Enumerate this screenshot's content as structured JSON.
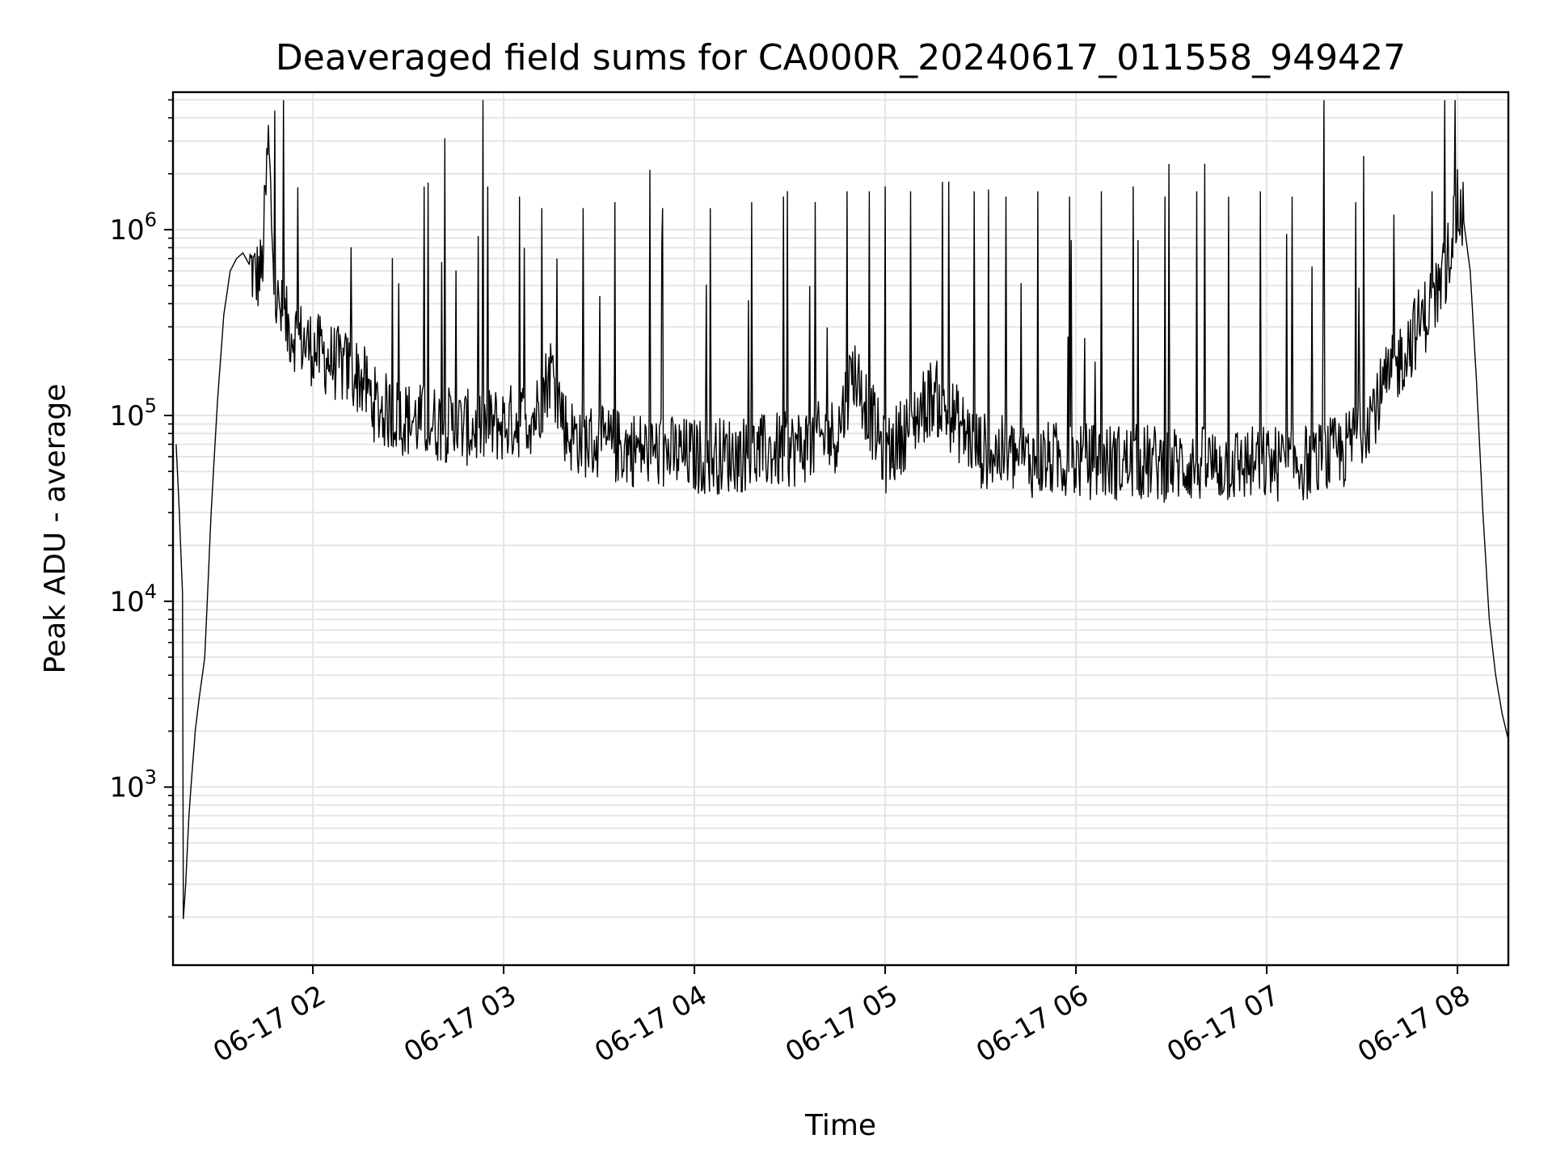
{
  "chart_data": {
    "type": "line",
    "title": "Deaveraged field sums for CA000R_20240617_011558_949427",
    "xlabel": "Time",
    "ylabel": "Peak ADU - average",
    "yscale": "log",
    "ylim": [
      110,
      5500000
    ],
    "xlim": [
      "2024-06-17 01:16",
      "2024-06-17 08:16"
    ],
    "x_ticks": [
      "06-17 02",
      "06-17 03",
      "06-17 04",
      "06-17 05",
      "06-17 06",
      "06-17 07",
      "06-17 08"
    ],
    "x_tick_values": [
      "2024-06-17 02:00",
      "2024-06-17 03:00",
      "2024-06-17 04:00",
      "2024-06-17 05:00",
      "2024-06-17 06:00",
      "2024-06-17 07:00",
      "2024-06-17 08:00"
    ],
    "y_ticks": [
      {
        "base": "10",
        "exp": "3",
        "value": 1000
      },
      {
        "base": "10",
        "exp": "4",
        "value": 10000
      },
      {
        "base": "10",
        "exp": "5",
        "value": 100000
      },
      {
        "base": "10",
        "exp": "6",
        "value": 1000000
      }
    ],
    "grid": true,
    "line_color": "#000000",
    "grid_color": "#e5e5e5",
    "series": [
      {
        "x": [
          "2024-06-17 01:17",
          "2024-06-17 01:18",
          "2024-06-17 01:19",
          "2024-06-17 01:19",
          "2024-06-17 01:20",
          "2024-06-17 01:21",
          "2024-06-17 01:22",
          "2024-06-17 01:23",
          "2024-06-17 01:24",
          "2024-06-17 01:26",
          "2024-06-17 01:28",
          "2024-06-17 01:30",
          "2024-06-17 01:32",
          "2024-06-17 01:34",
          "2024-06-17 01:36",
          "2024-06-17 01:38",
          "2024-06-17 01:40",
          "2024-06-17 01:42",
          "2024-06-17 01:44",
          "2024-06-17 01:46",
          "2024-06-17 01:48",
          "2024-06-17 01:49",
          "2024-06-17 01:50",
          "2024-06-17 01:52",
          "2024-06-17 01:54",
          "2024-06-17 01:56",
          "2024-06-17 01:58",
          "2024-06-17 02:00",
          "2024-06-17 02:05",
          "2024-06-17 02:10",
          "2024-06-17 02:15",
          "2024-06-17 02:20",
          "2024-06-17 02:30",
          "2024-06-17 02:40",
          "2024-06-17 02:50",
          "2024-06-17 03:00",
          "2024-06-17 03:10",
          "2024-06-17 03:15",
          "2024-06-17 03:20",
          "2024-06-17 03:30",
          "2024-06-17 03:45",
          "2024-06-17 04:00",
          "2024-06-17 04:15",
          "2024-06-17 04:30",
          "2024-06-17 04:45",
          "2024-06-17 04:50",
          "2024-06-17 05:00",
          "2024-06-17 05:15",
          "2024-06-17 05:30",
          "2024-06-17 05:45",
          "2024-06-17 06:00",
          "2024-06-17 06:15",
          "2024-06-17 06:30",
          "2024-06-17 06:45",
          "2024-06-17 07:00",
          "2024-06-17 07:15",
          "2024-06-17 07:25",
          "2024-06-17 07:35",
          "2024-06-17 07:45",
          "2024-06-17 07:50",
          "2024-06-17 07:55",
          "2024-06-17 08:00",
          "2024-06-17 08:02",
          "2024-06-17 08:04",
          "2024-06-17 08:06",
          "2024-06-17 08:08",
          "2024-06-17 08:10",
          "2024-06-17 08:12",
          "2024-06-17 08:14",
          "2024-06-17 08:16"
        ],
        "y": [
          70000,
          30000,
          11000,
          170,
          300,
          700,
          1200,
          2000,
          2800,
          5000,
          30000,
          120000,
          350000,
          600000,
          700000,
          750000,
          650000,
          550000,
          600000,
          3000000,
          450000,
          380000,
          350000,
          300000,
          280000,
          260000,
          240000,
          230000,
          200000,
          180000,
          160000,
          110000,
          95000,
          90000,
          85000,
          90000,
          100000,
          180000,
          80000,
          70000,
          65000,
          60000,
          62000,
          65000,
          80000,
          180000,
          60000,
          130000,
          65000,
          58000,
          57000,
          56000,
          55000,
          54000,
          55000,
          56000,
          65000,
          120000,
          250000,
          350000,
          500000,
          1300000,
          1100000,
          600000,
          150000,
          30000,
          8000,
          4000,
          2500,
          1800
        ],
        "spikes": [
          [
            "2024-06-17 02:12",
            800000
          ],
          [
            "2024-06-17 02:25",
            700000
          ],
          [
            "2024-06-17 02:35",
            1700000
          ],
          [
            "2024-06-17 02:45",
            600000
          ],
          [
            "2024-06-17 02:55",
            1700000
          ],
          [
            "2024-06-17 03:05",
            1500000
          ],
          [
            "2024-06-17 03:12",
            1300000
          ],
          [
            "2024-06-17 03:25",
            1300000
          ],
          [
            "2024-06-17 03:35",
            1400000
          ],
          [
            "2024-06-17 03:50",
            1300000
          ],
          [
            "2024-06-17 04:05",
            1300000
          ],
          [
            "2024-06-17 04:18",
            1400000
          ],
          [
            "2024-06-17 04:28",
            1500000
          ],
          [
            "2024-06-17 04:38",
            1400000
          ],
          [
            "2024-06-17 04:48",
            1600000
          ],
          [
            "2024-06-17 04:55",
            1600000
          ],
          [
            "2024-06-17 05:00",
            1700000
          ],
          [
            "2024-06-17 05:08",
            1600000
          ],
          [
            "2024-06-17 05:18",
            1800000
          ],
          [
            "2024-06-17 05:28",
            1600000
          ],
          [
            "2024-06-17 05:38",
            1500000
          ],
          [
            "2024-06-17 05:48",
            1600000
          ],
          [
            "2024-06-17 05:58",
            1500000
          ],
          [
            "2024-06-17 06:08",
            1600000
          ],
          [
            "2024-06-17 06:18",
            1700000
          ],
          [
            "2024-06-17 06:28",
            1500000
          ],
          [
            "2024-06-17 06:38",
            1600000
          ],
          [
            "2024-06-17 06:48",
            1500000
          ],
          [
            "2024-06-17 06:58",
            1600000
          ],
          [
            "2024-06-17 07:08",
            1500000
          ],
          [
            "2024-06-17 07:18",
            1600000
          ],
          [
            "2024-06-17 07:28",
            1400000
          ],
          [
            "2024-06-17 07:40",
            1200000
          ],
          [
            "2024-06-17 07:52",
            1600000
          ]
        ]
      }
    ]
  }
}
